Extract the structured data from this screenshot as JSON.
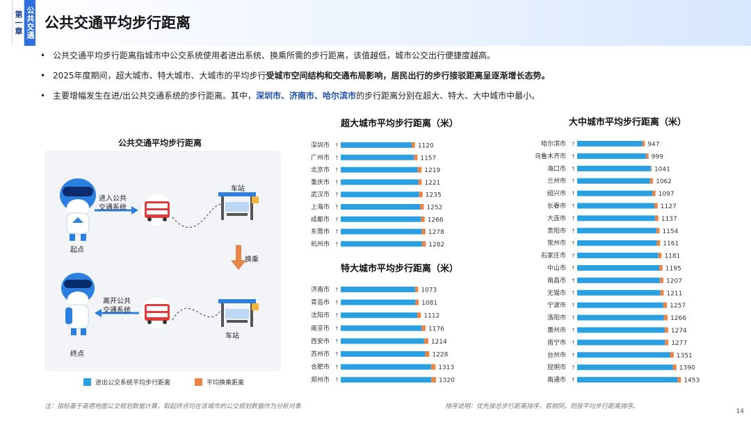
{
  "header": {
    "chapter_tab": "第一章",
    "chapter_name": "公共交通",
    "title": "公共交通平均步行距离"
  },
  "bullets": {
    "b1": "公共交通平均步行距离指城市中公交系统使用者进出系统、换乘所需的步行距离，该值越低，城市公交出行便捷度越高。",
    "b2_a": "2025年度期间，超大城市、特大城市、大城市的平均步行",
    "b2_b": "受城市空间结构和交通布局影响，居民出行的步行接驳距离呈逐渐增长态势。",
    "b3_a": "主要增幅发生在进/出公共交通系统的步行距离。其中，",
    "b3_cities": "深圳市、济南市、哈尔滨市",
    "b3_b": "的步行距离分别在超大、特大、大中城市中最小。"
  },
  "illustration": {
    "title": "公共交通平均步行距离",
    "enter_label_1": "进入公共",
    "enter_label_2": "交通系统",
    "leave_label_1": "离开公共",
    "leave_label_2": "交通系统",
    "station_top": "车站",
    "station_bottom": "车站",
    "start": "起点",
    "end": "终点",
    "transfer": "换乘"
  },
  "legend": {
    "access": "进出公交系统平均步行距离",
    "transfer": "平均换乘距离"
  },
  "colors": {
    "access": "#2a9fe2",
    "transfer": "#e8864a",
    "accent": "#2f6fe0"
  },
  "notes": {
    "left": "注：指标基于高德地图公交规划数据计算，取起终点均在该城市的公交规划数据作为分析对象",
    "right": "排序说明：优先按总步行距离排序，若相同，则按平均步行距离排序。",
    "page": "14"
  },
  "chart_data": [
    {
      "type": "bar",
      "orientation": "horizontal",
      "stacked": true,
      "title": "超大城市平均步行距离（米）",
      "categories": [
        "深圳市",
        "广州市",
        "北京市",
        "重庆市",
        "武汉市",
        "上海市",
        "成都市",
        "东莞市",
        "杭州市"
      ],
      "trend": "↑",
      "series": [
        {
          "name": "进出公交系统平均步行距离",
          "values": [
            1070,
            1105,
            1160,
            1170,
            1180,
            1195,
            1210,
            1220,
            1225
          ]
        },
        {
          "name": "平均换乘距离",
          "values": [
            50,
            52,
            59,
            51,
            55,
            57,
            56,
            58,
            57
          ]
        }
      ],
      "totals": [
        1120,
        1157,
        1219,
        1221,
        1235,
        1252,
        1266,
        1278,
        1282
      ]
    },
    {
      "type": "bar",
      "orientation": "horizontal",
      "stacked": true,
      "title": "特大城市平均步行距离（米）",
      "categories": [
        "济南市",
        "青岛市",
        "沈阳市",
        "南京市",
        "西安市",
        "苏州市",
        "合肥市",
        "郑州市"
      ],
      "trend": "↑",
      "series": [
        {
          "name": "进出公交系统平均步行距离",
          "values": [
            1030,
            1035,
            1060,
            1120,
            1155,
            1170,
            1250,
            1255
          ]
        },
        {
          "name": "平均换乘距离",
          "values": [
            43,
            46,
            52,
            56,
            59,
            58,
            63,
            65
          ]
        }
      ],
      "totals": [
        1073,
        1081,
        1112,
        1176,
        1214,
        1228,
        1313,
        1320
      ]
    },
    {
      "type": "bar",
      "orientation": "horizontal",
      "stacked": true,
      "title": "大中城市平均步行距离（米）",
      "categories": [
        "哈尔滨市",
        "乌鲁木齐市",
        "海口市",
        "兰州市",
        "绍兴市",
        "长春市",
        "大连市",
        "贵阳市",
        "常州市",
        "石家庄市",
        "中山市",
        "南昌市",
        "无锡市",
        "宁波市",
        "洛阳市",
        "惠州市",
        "南宁市",
        "台州市",
        "昆明市",
        "南通市"
      ],
      "trend": "↑",
      "series": [
        {
          "name": "进出公交系统平均步行距离",
          "values": [
            910,
            965,
            1030,
            1020,
            1055,
            1080,
            1090,
            1110,
            1115,
            1135,
            1150,
            1160,
            1165,
            1205,
            1215,
            1225,
            1230,
            1300,
            1340,
            1405
          ]
        },
        {
          "name": "平均换乘距离",
          "values": [
            37,
            34,
            11,
            42,
            42,
            47,
            47,
            44,
            46,
            46,
            45,
            47,
            46,
            52,
            51,
            49,
            47,
            51,
            50,
            48
          ]
        }
      ],
      "totals": [
        947,
        999,
        1041,
        1062,
        1097,
        1127,
        1137,
        1154,
        1161,
        1181,
        1195,
        1207,
        1211,
        1257,
        1266,
        1274,
        1277,
        1351,
        1390,
        1453
      ]
    }
  ]
}
